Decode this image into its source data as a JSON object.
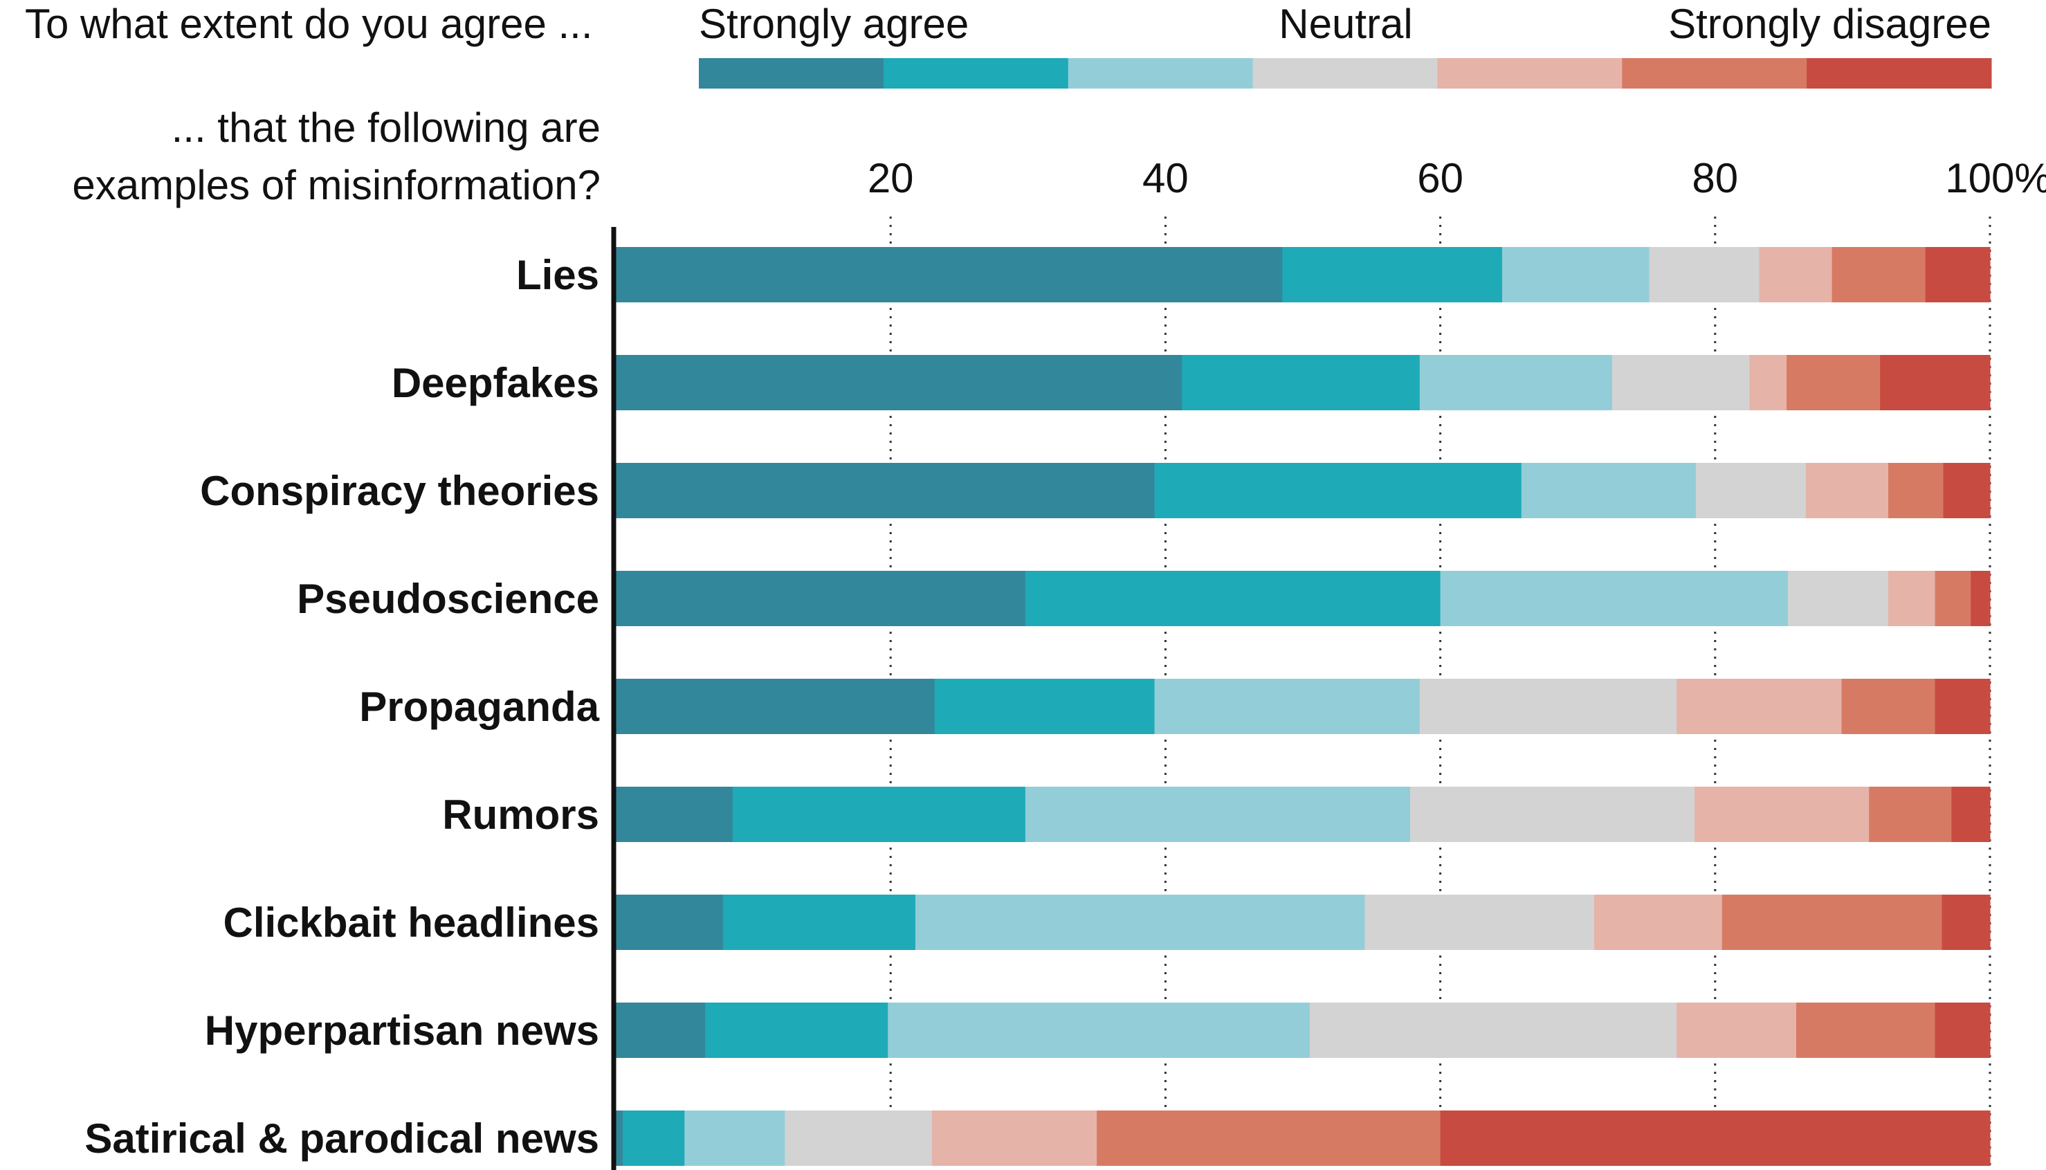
{
  "header": {
    "question_line1": "To what extent do you agree ...",
    "question_line2a": "... that the following are",
    "question_line2b": "examples of misinformation?",
    "scale_left": "Strongly agree",
    "scale_mid": "Neutral",
    "scale_right": "Strongly disagree"
  },
  "colors": {
    "scale": [
      "#33879b",
      "#1eaab6",
      "#93ced8",
      "#d3d3d3",
      "#e6b3a9",
      "#d77a64",
      "#c84b42"
    ]
  },
  "chart_data": {
    "type": "bar",
    "orientation": "horizontal",
    "stacked": true,
    "xlim": [
      0,
      100
    ],
    "xticks": [
      20,
      40,
      60,
      80,
      100
    ],
    "xtick_labels": [
      "20",
      "40",
      "60",
      "80",
      "100%"
    ],
    "grid": "vertical dotted",
    "categories": [
      "Lies",
      "Deepfakes",
      "Conspiracy theories",
      "Pseudoscience",
      "Propaganda",
      "Rumors",
      "Clickbait headlines",
      "Hyperpartisan news",
      "Satirical & parodical news"
    ],
    "series": [
      {
        "name": "Strongly agree",
        "values": [
          48.5,
          41.2,
          39.2,
          29.8,
          23.2,
          8.5,
          7.8,
          6.5,
          0.5
        ]
      },
      {
        "name": "",
        "values": [
          16.0,
          17.3,
          26.7,
          30.2,
          16.0,
          21.3,
          14.0,
          13.3,
          4.5
        ]
      },
      {
        "name": "",
        "values": [
          10.7,
          14.0,
          12.7,
          25.3,
          19.3,
          28.0,
          32.7,
          30.7,
          7.3
        ]
      },
      {
        "name": "Neutral",
        "values": [
          8.0,
          10.0,
          8.0,
          7.3,
          18.7,
          20.7,
          16.7,
          26.7,
          10.7
        ]
      },
      {
        "name": "",
        "values": [
          5.3,
          2.7,
          6.0,
          3.4,
          12.0,
          12.7,
          9.3,
          8.7,
          12.0
        ]
      },
      {
        "name": "",
        "values": [
          6.8,
          6.8,
          4.0,
          2.6,
          6.8,
          6.0,
          16.0,
          10.1,
          25.0
        ]
      },
      {
        "name": "Strongly disagree",
        "values": [
          4.7,
          8.0,
          3.4,
          1.4,
          4.0,
          2.8,
          3.5,
          4.0,
          40.0
        ]
      }
    ]
  }
}
